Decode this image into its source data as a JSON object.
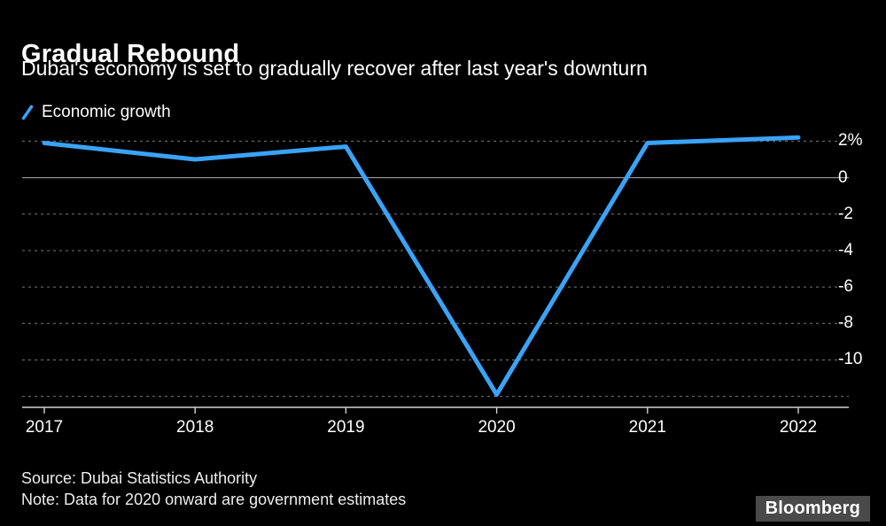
{
  "header": {
    "title": "Gradual Rebound",
    "subtitle": "Dubai's economy is set to gradually recover after last year's downturn"
  },
  "legend": {
    "label": "Economic growth",
    "color": "#3AA3F7"
  },
  "chart_data": {
    "type": "line",
    "x": [
      "2017",
      "2018",
      "2019",
      "2020",
      "2021",
      "2022"
    ],
    "series": [
      {
        "name": "Economic growth",
        "color": "#3AA3F7",
        "values": [
          1.9,
          1.0,
          1.7,
          -11.9,
          1.9,
          2.2
        ]
      }
    ],
    "title": "Gradual Rebound",
    "xlabel": "",
    "ylabel": "",
    "ylim": [
      -12.6,
      2.7
    ],
    "y_ticks": [
      {
        "value": 2,
        "label": "2%"
      },
      {
        "value": 0,
        "label": "0"
      },
      {
        "value": -2,
        "label": "-2"
      },
      {
        "value": -4,
        "label": "-4"
      },
      {
        "value": -6,
        "label": "-6"
      },
      {
        "value": -8,
        "label": "-8"
      },
      {
        "value": -10,
        "label": "-10"
      }
    ],
    "unlabeled_gridlines": [
      -12
    ],
    "grid": "horizontal-dashed",
    "zero_line": "solid",
    "legend_position": "top-left"
  },
  "footer": {
    "source": "Source: Dubai Statistics Authority",
    "note": "Note: Data for 2020 onward are government estimates",
    "logo": "Bloomberg"
  },
  "colors": {
    "background": "#000000",
    "gridline": "#7a7a7a",
    "zero_line": "#8f8f8f",
    "axis": "#d2d2d2",
    "text": "#ffffff"
  }
}
